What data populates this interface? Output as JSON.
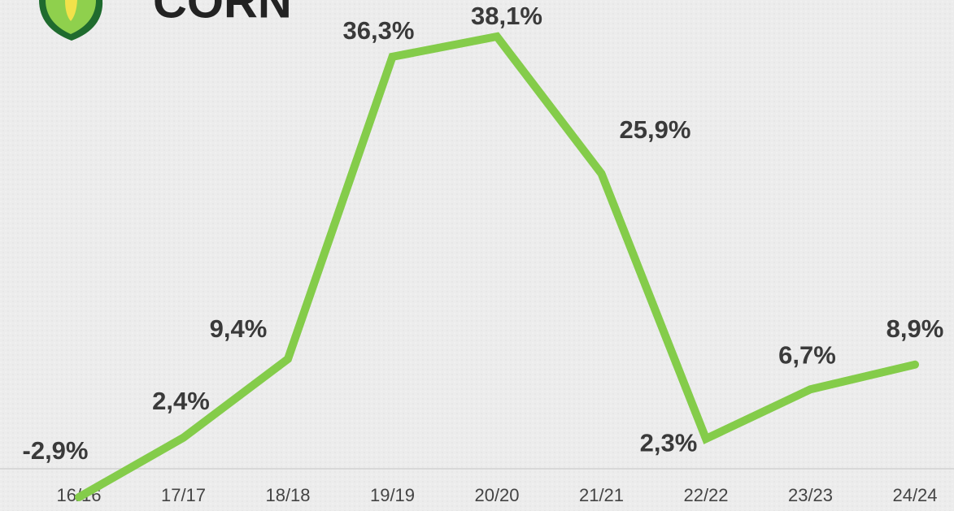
{
  "chart_data": {
    "type": "line",
    "title": "CORN",
    "categories": [
      "16/16",
      "17/17",
      "18/18",
      "19/19",
      "20/20",
      "21/21",
      "22/22",
      "23/23",
      "24/24"
    ],
    "values": [
      -2.9,
      2.4,
      9.4,
      36.3,
      38.1,
      25.9,
      2.3,
      6.7,
      8.9
    ],
    "value_labels": [
      "-2,9%",
      "2,4%",
      "9,4%",
      "36,3%",
      "38,1%",
      "25,9%",
      "2,3%",
      "6,7%",
      "8,9%"
    ],
    "color": "#84cc4a"
  }
}
